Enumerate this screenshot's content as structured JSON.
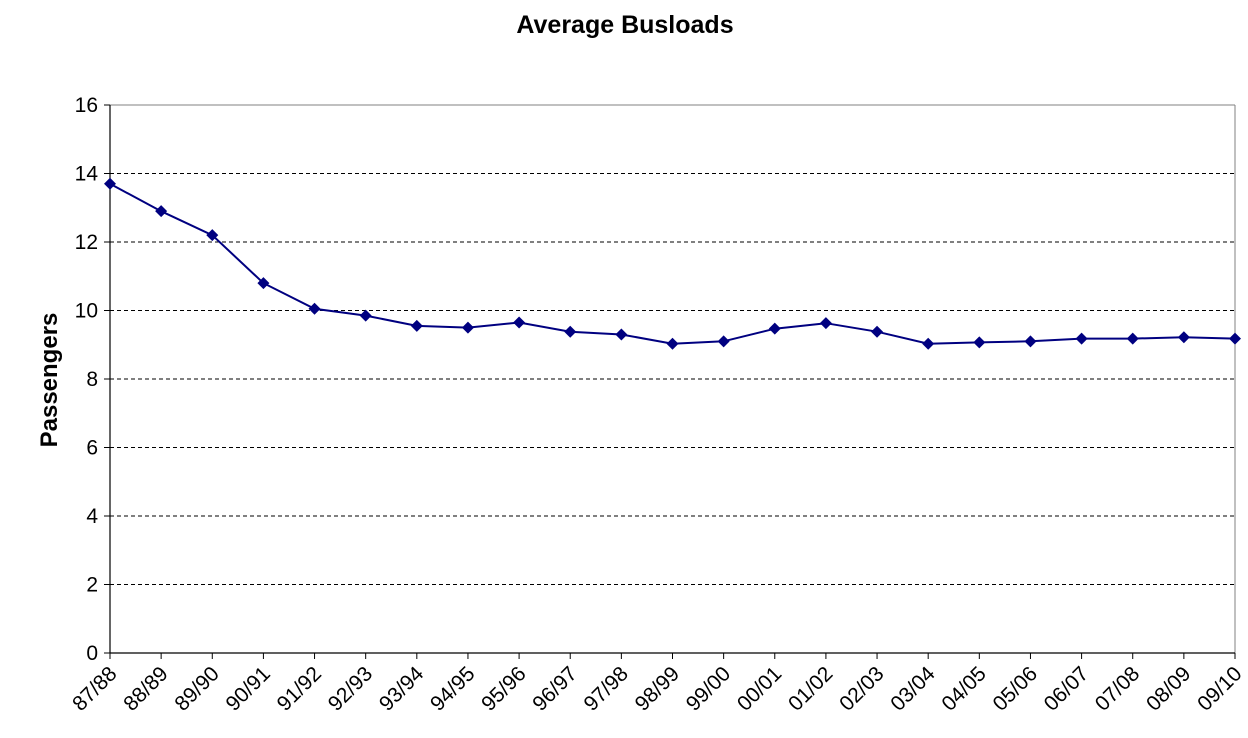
{
  "chart_data": {
    "type": "line",
    "title": "Average Busloads",
    "xlabel": "",
    "ylabel": "Passengers",
    "ylim": [
      0,
      16
    ],
    "yticks": [
      0,
      2,
      4,
      6,
      8,
      10,
      12,
      14,
      16
    ],
    "grid": "horizontal-dashed",
    "legend": "none",
    "categories": [
      "87/88",
      "88/89",
      "89/90",
      "90/91",
      "91/92",
      "92/93",
      "93/94",
      "94/95",
      "95/96",
      "96/97",
      "97/98",
      "98/99",
      "99/00",
      "00/01",
      "01/02",
      "02/03",
      "03/04",
      "04/05",
      "05/06",
      "06/07",
      "07/08",
      "08/09",
      "09/10"
    ],
    "series": [
      {
        "values": [
          13.7,
          12.9,
          12.2,
          10.8,
          10.05,
          9.85,
          9.55,
          9.5,
          9.65,
          9.38,
          9.3,
          9.03,
          9.1,
          9.47,
          9.63,
          9.38,
          9.03,
          9.07,
          9.1,
          9.18,
          9.18,
          9.22,
          9.18
        ],
        "color": "#000080"
      }
    ],
    "colors": {
      "line": "#000080",
      "marker": "#000080",
      "grid": "#000000",
      "axis": "#808080"
    }
  }
}
